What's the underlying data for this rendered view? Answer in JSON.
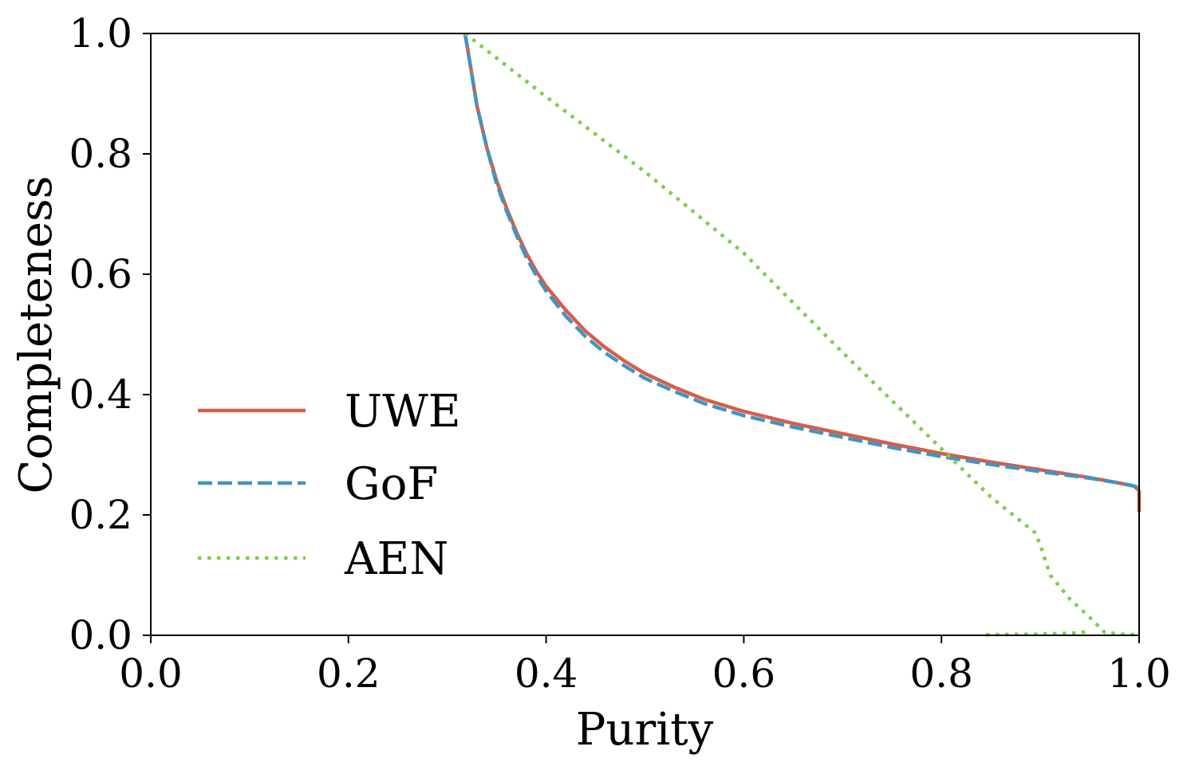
{
  "chart_data": {
    "type": "line",
    "title": "",
    "xlabel": "Purity",
    "ylabel": "Completeness",
    "xlim": [
      0.0,
      1.0
    ],
    "ylim": [
      0.0,
      1.0
    ],
    "xticks": [
      0.0,
      0.2,
      0.4,
      0.6,
      0.8,
      1.0
    ],
    "yticks": [
      0.0,
      0.2,
      0.4,
      0.6,
      0.8,
      1.0
    ],
    "xtick_labels": [
      "0.0",
      "0.2",
      "0.4",
      "0.6",
      "0.8",
      "1.0"
    ],
    "ytick_labels": [
      "0.0",
      "0.2",
      "0.4",
      "0.6",
      "0.8",
      "1.0"
    ],
    "grid": false,
    "legend_position": "lower-left",
    "series": [
      {
        "name": "UWE",
        "color": "#d45f4a",
        "line_style": "solid",
        "x": [
          0.318,
          0.322,
          0.33,
          0.34,
          0.35,
          0.36,
          0.37,
          0.38,
          0.39,
          0.4,
          0.42,
          0.44,
          0.46,
          0.48,
          0.5,
          0.53,
          0.56,
          0.6,
          0.65,
          0.7,
          0.75,
          0.8,
          0.85,
          0.9,
          0.95,
          0.98,
          0.995,
          1.0,
          1.0
        ],
        "y": [
          1.0,
          0.96,
          0.88,
          0.81,
          0.755,
          0.71,
          0.67,
          0.635,
          0.605,
          0.58,
          0.54,
          0.505,
          0.478,
          0.455,
          0.435,
          0.412,
          0.392,
          0.372,
          0.352,
          0.335,
          0.318,
          0.302,
          0.288,
          0.275,
          0.262,
          0.253,
          0.248,
          0.24,
          0.205
        ]
      },
      {
        "name": "GoF",
        "color": "#4393c3",
        "line_style": "dashed",
        "x": [
          0.318,
          0.322,
          0.33,
          0.34,
          0.35,
          0.36,
          0.37,
          0.38,
          0.39,
          0.4,
          0.42,
          0.44,
          0.46,
          0.48,
          0.5,
          0.53,
          0.56,
          0.6,
          0.65,
          0.7,
          0.75,
          0.8,
          0.85,
          0.9,
          0.95,
          0.98,
          0.995,
          1.0
        ],
        "y": [
          1.0,
          0.96,
          0.88,
          0.81,
          0.75,
          0.705,
          0.665,
          0.628,
          0.598,
          0.572,
          0.53,
          0.496,
          0.469,
          0.447,
          0.427,
          0.405,
          0.385,
          0.365,
          0.346,
          0.329,
          0.312,
          0.297,
          0.284,
          0.272,
          0.261,
          0.253,
          0.248,
          0.245
        ]
      },
      {
        "name": "AEN",
        "color": "#7ed04b",
        "line_style": "dotted",
        "x": [
          0.318,
          0.4,
          0.5,
          0.6,
          0.7,
          0.8,
          0.85,
          0.88,
          0.895,
          0.9,
          0.91,
          0.93,
          0.95,
          0.965,
          0.98,
          1.0
        ],
        "y": [
          1.0,
          0.895,
          0.77,
          0.635,
          0.47,
          0.31,
          0.23,
          0.19,
          0.17,
          0.15,
          0.1,
          0.06,
          0.03,
          0.005,
          0.002,
          0.001
        ]
      },
      {
        "name": "",
        "color": "#7ed04b",
        "line_style": "dotted",
        "x": [
          0.845,
          0.9,
          0.94,
          0.95
        ],
        "y": [
          0.001,
          0.002,
          0.004,
          0.008
        ]
      }
    ]
  }
}
